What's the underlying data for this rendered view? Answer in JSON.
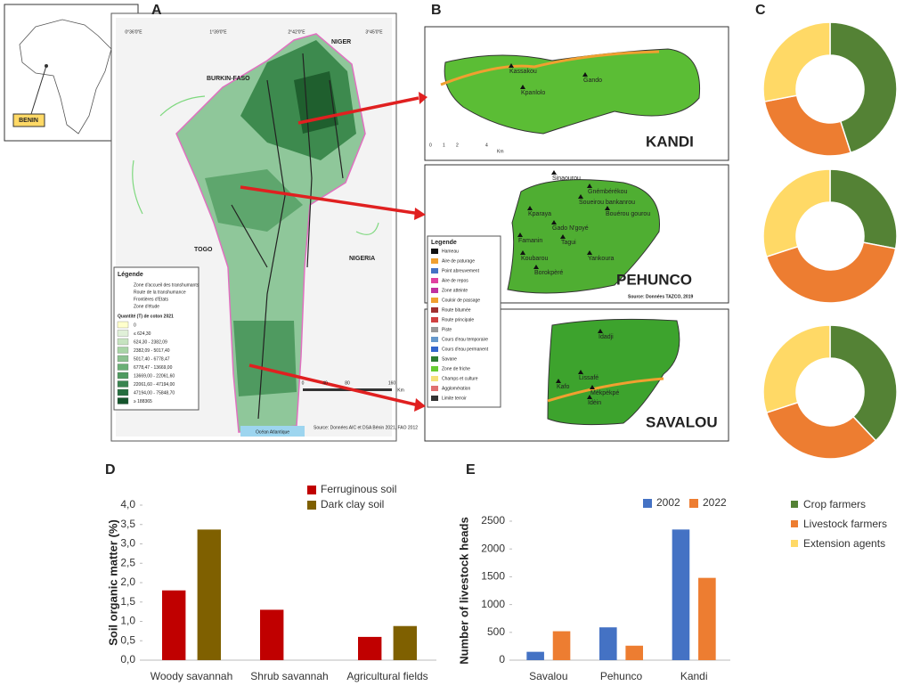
{
  "figure": {
    "panel_labels": [
      "A",
      "B",
      "C",
      "D",
      "E"
    ],
    "map_a": {
      "inset_label": "BENIN",
      "countries": [
        "NIGER",
        "BURKIN-FASO",
        "TOGO",
        "NIGERIA"
      ],
      "coords_top": [
        "0°36'0\"E",
        "1°39'0\"E",
        "2°42'0\"E",
        "3°45'0\"E"
      ],
      "legend_title": "Légende",
      "legend_items": [
        "Zone d'accueil des transhumants",
        "Route de la transhumance",
        "Frontières d'Etats",
        "Zone d'étude"
      ],
      "cotton_title": "Quantité (T) de coton 2021",
      "cotton_classes": [
        "0",
        "≤ 624,30",
        "624,30 - 2382,09",
        "2382,09 - 5017,40",
        "5017,40 - 6778,47",
        "6778,47 - 13669,00",
        "13669,00 - 22061,60",
        "22061,60 - 47194,00",
        "47194,00 - 75848,70",
        "≥ 188365"
      ],
      "scale": [
        "0",
        "40",
        "80",
        "160",
        "Km"
      ],
      "sea": "Océan Atlantique",
      "source": "Source: Données AIC et DSA Bénin 2021, FAO 2012"
    },
    "map_b": {
      "maps": [
        {
          "name": "KANDI",
          "places": [
            "Kassakou",
            "Kpanlolo",
            "Gando"
          ]
        },
        {
          "name": "PEHUNCO",
          "places": [
            "Sinaourou",
            "Gnémbérékou",
            "Soueirou bankanrou",
            "Bouérou gourou",
            "Kparaya",
            "Gado N'goyé",
            "Famanin",
            "Tagui",
            "Koubarou",
            "Yankoura",
            "Borokpèré"
          ]
        },
        {
          "name": "SAVALOU",
          "places": [
            "Idadji",
            "Lissafé",
            "Kafo",
            "Mèkpèkpé",
            "Idèin"
          ]
        }
      ],
      "legend_title": "Legende",
      "legend_items": [
        "Hameau",
        "Aire de paturage",
        "Point abreuvement",
        "Aire de repos",
        "Zone atteinte",
        "Couloir de passage",
        "Route bitumée",
        "Route principale",
        "Piste",
        "Cours d'eau temporaire",
        "Cours d'eau permanent",
        "Savane",
        "Zone de friche",
        "Champs et culture",
        "Agglomération",
        "Limite terroir"
      ],
      "scale": [
        "0",
        "1",
        "2",
        "4",
        "Km"
      ],
      "source": "Source: Données TAZCO, 2019"
    }
  },
  "chart_data": [
    {
      "type": "donut",
      "categories": [
        "Crop farmers",
        "Livestock farmers",
        "Extension agents"
      ],
      "colors": [
        "#548235",
        "#ed7d31",
        "#ffd966"
      ],
      "series": [
        {
          "values": [
            45,
            27,
            28
          ]
        },
        {
          "values": [
            28,
            42,
            30
          ]
        },
        {
          "values": [
            38,
            32,
            30
          ]
        }
      ]
    },
    {
      "type": "bar",
      "y_label": "Soil organic matter (%)",
      "categories": [
        "Woody savannah",
        "Shrub savannah",
        "Agricultural fields"
      ],
      "series": [
        {
          "name": "Ferruginous soil",
          "color": "#c00000",
          "values": [
            1.8,
            1.3,
            0.6
          ]
        },
        {
          "name": "Dark clay soil",
          "color": "#7f6000",
          "values": [
            3.37,
            null,
            0.88
          ]
        }
      ],
      "ylim": [
        0,
        4
      ],
      "yticks": [
        {
          "value": 0,
          "label": "0,0"
        },
        {
          "value": 0.5,
          "label": "0,5"
        },
        {
          "value": 1,
          "label": "1,0"
        },
        {
          "value": 1.5,
          "label": "1,5"
        },
        {
          "value": 2,
          "label": "2,0"
        },
        {
          "value": 2.5,
          "label": "2,5"
        },
        {
          "value": 3,
          "label": "3,0"
        },
        {
          "value": 3.5,
          "label": "3,5"
        },
        {
          "value": 4,
          "label": "4,0"
        }
      ]
    },
    {
      "type": "bar",
      "y_label": "Number of livestock heads",
      "categories": [
        "Savalou",
        "Pehunco",
        "Kandi"
      ],
      "series": [
        {
          "name": "2002",
          "color": "#4472c4",
          "values": [
            150,
            590,
            2350
          ]
        },
        {
          "name": "2022",
          "color": "#ed7d31",
          "values": [
            520,
            260,
            1480
          ]
        }
      ],
      "ylim": [
        0,
        2500
      ],
      "yticks": [
        0,
        500,
        1000,
        1500,
        2000,
        2500
      ]
    }
  ]
}
